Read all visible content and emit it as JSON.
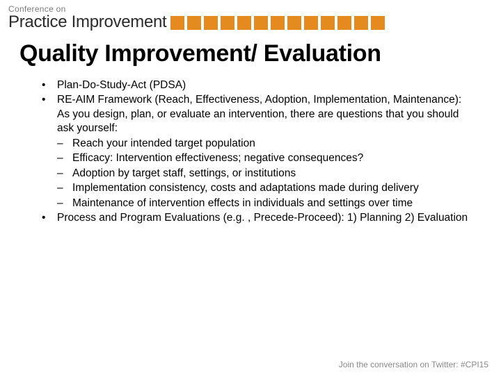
{
  "header": {
    "line1": "Conference on",
    "line2": "Practice Improvement",
    "square_color": "#e58a1f",
    "square_count": 13
  },
  "title": "Quality Improvement/ Evaluation",
  "bullets": {
    "b1": "Plan-Do-Study-Act (PDSA)",
    "b2": "RE-AIM Framework (Reach, Effectiveness, Adoption, Implementation, Maintenance): As you design, plan, or evaluate an intervention, there are questions that you should ask yourself:",
    "s1": "Reach your intended target population",
    "s2": "Efficacy: Intervention effectiveness; negative consequences?",
    "s3": "Adoption by target staff, settings, or institutions",
    "s4": "Implementation consistency, costs and adaptations made during delivery",
    "s5": "Maintenance of intervention effects in individuals and settings over time",
    "b3": "Process and Program Evaluations (e.g. , Precede-Proceed): 1) Planning 2) Evaluation"
  },
  "footer": "Join the conversation on Twitter: #CPI15",
  "colors": {
    "text": "#000000",
    "header_gray": "#7a7a7a",
    "footer_gray": "#888888",
    "background": "#ffffff"
  },
  "typography": {
    "title_fontsize": 34,
    "body_fontsize": 15.5,
    "header_small_fontsize": 12,
    "header_large_fontsize": 24,
    "footer_fontsize": 12
  }
}
